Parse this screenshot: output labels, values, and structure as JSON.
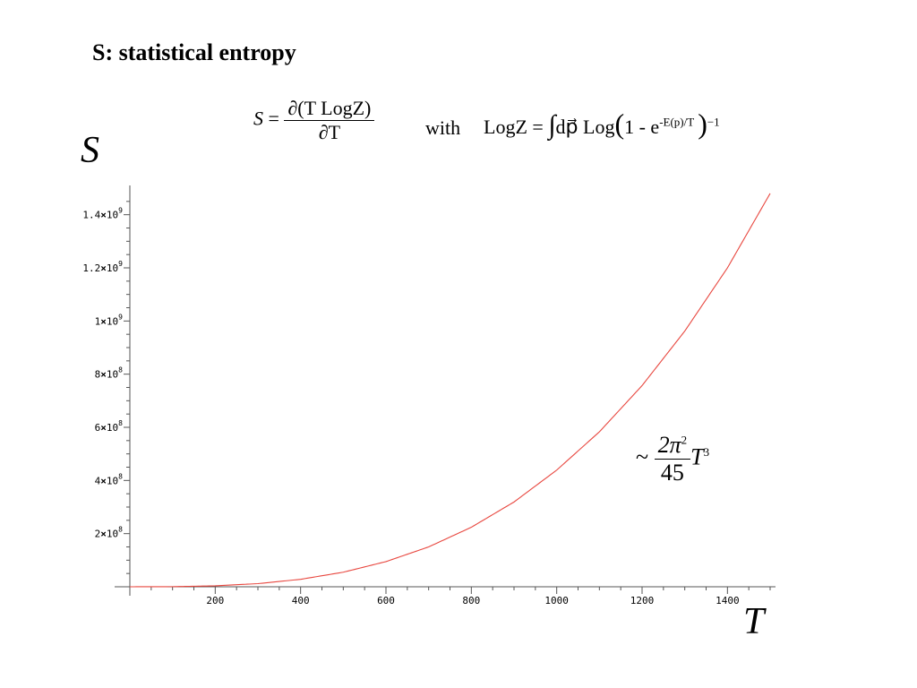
{
  "title": "S: statistical entropy",
  "formula_entropy": {
    "lhs": "S",
    "equals": "=",
    "numerator": "∂(T LogZ)",
    "denominator": "∂T"
  },
  "formula_with": "with",
  "formula_logz": {
    "lhs": "LogZ",
    "equals": "=",
    "integral": "∫",
    "measure": "dp⃗",
    "log": "Log",
    "open": "(",
    "inner": "1 - e",
    "inner_exp": "-E(p)/T",
    "close": ")",
    "outer_exp": "−1"
  },
  "asymptote": {
    "tilde": "~",
    "numerator": "2π",
    "numerator_exp": "2",
    "denominator": "45",
    "var": "T",
    "var_exp": "3"
  },
  "axis_y_var": "S",
  "axis_x_var": "T",
  "chart_data": {
    "type": "line",
    "xlabel": "T",
    "ylabel": "S",
    "xlim": [
      0,
      1500
    ],
    "ylim": [
      0,
      1500000000
    ],
    "x_ticks": [
      200,
      400,
      600,
      800,
      1000,
      1200,
      1400
    ],
    "y_ticks": [
      {
        "value": 200000000,
        "mantissa": "2",
        "exp": "8"
      },
      {
        "value": 400000000,
        "mantissa": "4",
        "exp": "8"
      },
      {
        "value": 600000000,
        "mantissa": "6",
        "exp": "8"
      },
      {
        "value": 800000000,
        "mantissa": "8",
        "exp": "8"
      },
      {
        "value": 1000000000,
        "mantissa": "1",
        "exp": "9"
      },
      {
        "value": 1200000000,
        "mantissa": "1.2",
        "exp": "9"
      },
      {
        "value": 1400000000,
        "mantissa": "1.4",
        "exp": "9"
      }
    ],
    "series": [
      {
        "color": "#e8473f",
        "x": [
          0,
          100,
          200,
          300,
          400,
          500,
          600,
          700,
          800,
          900,
          1000,
          1100,
          1200,
          1300,
          1400,
          1500
        ],
        "y": [
          0,
          438000,
          3500000,
          11800000,
          28100000,
          54800000,
          94700000,
          150000000,
          224000000,
          319000000,
          439000000,
          583000000,
          757000000,
          962000000,
          1200000000,
          1480000000
        ]
      }
    ]
  }
}
